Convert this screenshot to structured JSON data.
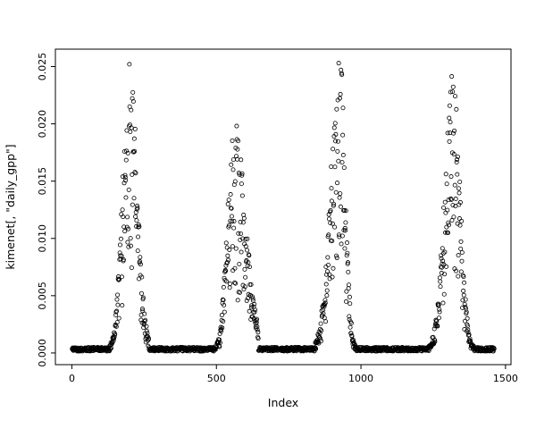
{
  "chart_data": {
    "type": "scatter",
    "title": "",
    "xlabel": "Index",
    "ylabel": "kimenet[, \"daily_gpp\"]",
    "xlim": [
      -57,
      1519
    ],
    "ylim": [
      -0.00102,
      0.02652
    ],
    "x_ticks": [
      0,
      500,
      1000,
      1500
    ],
    "x_tick_labels": [
      "0",
      "500",
      "1000",
      "1500"
    ],
    "y_ticks": [
      0,
      0.005,
      0.01,
      0.015,
      0.02,
      0.025
    ],
    "y_tick_labels": [
      "0.000",
      "0.005",
      "0.010",
      "0.015",
      "0.020",
      "0.025"
    ],
    "grid": false,
    "legend": null,
    "marker": "open-circle",
    "point_color": "#000000",
    "background": "#ffffff",
    "n_points_approx": 1461,
    "seed": 42,
    "pattern_segments": [
      {
        "type": "flat",
        "x0": 1,
        "x1": 130,
        "base": 0.00015,
        "jitter": 0.00035
      },
      {
        "type": "peak",
        "x0": 131,
        "x1": 266,
        "x_peak": 200,
        "y_peak": 0.0253,
        "sigma_left": 24,
        "sigma_right": 26
      },
      {
        "type": "flat",
        "x0": 267,
        "x1": 490,
        "base": 0.00015,
        "jitter": 0.00035
      },
      {
        "type": "peak",
        "x0": 491,
        "x1": 645,
        "x_peak": 560,
        "y_peak": 0.0203,
        "sigma_left": 22,
        "sigma_right": 40
      },
      {
        "type": "flat",
        "x0": 646,
        "x1": 840,
        "base": 0.00015,
        "jitter": 0.00035
      },
      {
        "type": "peak",
        "x0": 841,
        "x1": 988,
        "x_peak": 928,
        "y_peak": 0.0255,
        "sigma_left": 32,
        "sigma_right": 18
      },
      {
        "type": "flat",
        "x0": 989,
        "x1": 1230,
        "base": 0.00015,
        "jitter": 0.00035
      },
      {
        "type": "peak",
        "x0": 1231,
        "x1": 1392,
        "x_peak": 1318,
        "y_peak": 0.0244,
        "sigma_left": 28,
        "sigma_right": 24
      },
      {
        "type": "flat",
        "x0": 1393,
        "x1": 1461,
        "base": 0.00015,
        "jitter": 0.00035
      }
    ]
  }
}
